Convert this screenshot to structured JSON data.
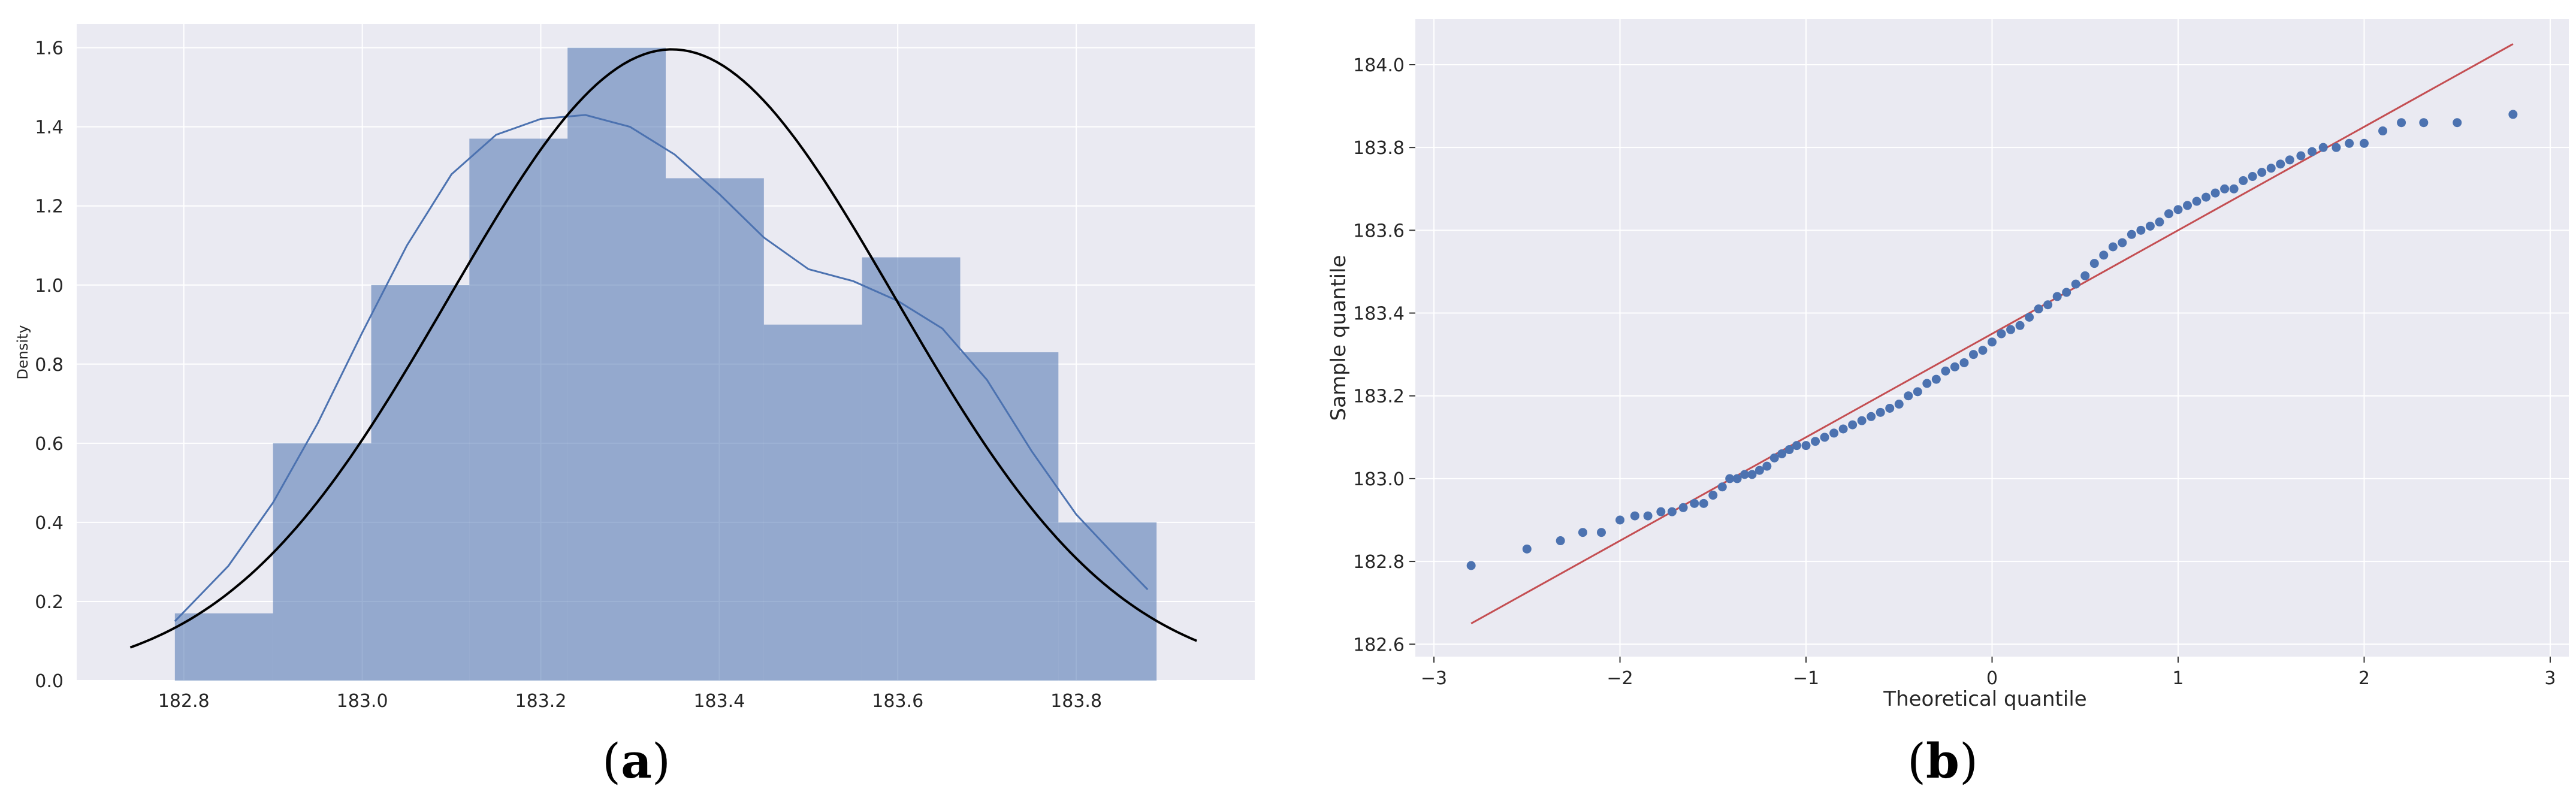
{
  "chart_data": [
    {
      "type": "histogram",
      "panel_label_parts": [
        "(",
        "a",
        ")"
      ],
      "title": "",
      "xlabel": "",
      "ylabel": "Density",
      "xlim": [
        182.68,
        184.0
      ],
      "ylim": [
        0,
        1.66
      ],
      "xticks": [
        "182.8",
        "183.0",
        "183.2",
        "183.4",
        "183.6",
        "183.8"
      ],
      "yticks": [
        "0.0",
        "0.2",
        "0.4",
        "0.6",
        "0.8",
        "1.0",
        "1.2",
        "1.4",
        "1.6"
      ],
      "grid": true,
      "background": "#eaeaf2",
      "bar_color": "#4c72b0",
      "bars": [
        {
          "x0": 182.79,
          "x1": 182.9,
          "density": 0.17
        },
        {
          "x0": 182.9,
          "x1": 183.01,
          "density": 0.6
        },
        {
          "x0": 183.01,
          "x1": 183.12,
          "density": 1.0
        },
        {
          "x0": 183.12,
          "x1": 183.23,
          "density": 1.37
        },
        {
          "x0": 183.23,
          "x1": 183.34,
          "density": 1.6
        },
        {
          "x0": 183.34,
          "x1": 183.45,
          "density": 1.27
        },
        {
          "x0": 183.45,
          "x1": 183.56,
          "density": 0.9
        },
        {
          "x0": 183.56,
          "x1": 183.67,
          "density": 1.07
        },
        {
          "x0": 183.67,
          "x1": 183.78,
          "density": 0.83
        },
        {
          "x0": 183.78,
          "x1": 183.89,
          "density": 0.4
        }
      ],
      "series": [
        {
          "kind": "kde",
          "color": "#4c72b0",
          "points": [
            [
              182.79,
              0.15
            ],
            [
              182.85,
              0.29
            ],
            [
              182.9,
              0.45
            ],
            [
              182.95,
              0.65
            ],
            [
              183.0,
              0.88
            ],
            [
              183.05,
              1.1
            ],
            [
              183.1,
              1.28
            ],
            [
              183.15,
              1.38
            ],
            [
              183.2,
              1.42
            ],
            [
              183.25,
              1.43
            ],
            [
              183.3,
              1.4
            ],
            [
              183.35,
              1.33
            ],
            [
              183.4,
              1.23
            ],
            [
              183.45,
              1.12
            ],
            [
              183.5,
              1.04
            ],
            [
              183.55,
              1.01
            ],
            [
              183.6,
              0.96
            ],
            [
              183.65,
              0.89
            ],
            [
              183.7,
              0.76
            ],
            [
              183.75,
              0.58
            ],
            [
              183.8,
              0.42
            ],
            [
              183.85,
              0.3
            ],
            [
              183.88,
              0.23
            ]
          ]
        },
        {
          "kind": "normal_fit",
          "color": "#000000",
          "mean": 183.347,
          "sd": 0.25,
          "x_range": [
            182.74,
            183.935
          ]
        }
      ]
    },
    {
      "type": "scatter",
      "panel_label_parts": [
        "(",
        "b",
        ")"
      ],
      "title": "",
      "xlabel": "Theoretical quantile",
      "ylabel": "Sample quantile",
      "xlim": [
        -3.1,
        3.1
      ],
      "ylim": [
        182.57,
        184.11
      ],
      "xticks": [
        "−3",
        "−2",
        "−1",
        "0",
        "1",
        "2",
        "3"
      ],
      "yticks": [
        "182.6",
        "182.8",
        "183.0",
        "183.2",
        "183.4",
        "183.6",
        "183.8",
        "184.0"
      ],
      "grid": true,
      "background": "#eaeaf2",
      "point_color": "#4c72b0",
      "line_color": "#c44e52",
      "reference_line": {
        "x": [
          -2.8,
          2.8
        ],
        "y": [
          182.65,
          184.05
        ]
      },
      "points": [
        [
          -2.8,
          182.79
        ],
        [
          -2.5,
          182.83
        ],
        [
          -2.32,
          182.85
        ],
        [
          -2.2,
          182.87
        ],
        [
          -2.1,
          182.87
        ],
        [
          -2.0,
          182.9
        ],
        [
          -1.92,
          182.91
        ],
        [
          -1.85,
          182.91
        ],
        [
          -1.78,
          182.92
        ],
        [
          -1.72,
          182.92
        ],
        [
          -1.66,
          182.93
        ],
        [
          -1.6,
          182.94
        ],
        [
          -1.55,
          182.94
        ],
        [
          -1.5,
          182.96
        ],
        [
          -1.45,
          182.98
        ],
        [
          -1.41,
          183.0
        ],
        [
          -1.37,
          183.0
        ],
        [
          -1.33,
          183.01
        ],
        [
          -1.29,
          183.01
        ],
        [
          -1.25,
          183.02
        ],
        [
          -1.21,
          183.03
        ],
        [
          -1.17,
          183.05
        ],
        [
          -1.13,
          183.06
        ],
        [
          -1.09,
          183.07
        ],
        [
          -1.05,
          183.08
        ],
        [
          -1.0,
          183.08
        ],
        [
          -0.95,
          183.09
        ],
        [
          -0.9,
          183.1
        ],
        [
          -0.85,
          183.11
        ],
        [
          -0.8,
          183.12
        ],
        [
          -0.75,
          183.13
        ],
        [
          -0.7,
          183.14
        ],
        [
          -0.65,
          183.15
        ],
        [
          -0.6,
          183.16
        ],
        [
          -0.55,
          183.17
        ],
        [
          -0.5,
          183.18
        ],
        [
          -0.45,
          183.2
        ],
        [
          -0.4,
          183.21
        ],
        [
          -0.35,
          183.23
        ],
        [
          -0.3,
          183.24
        ],
        [
          -0.25,
          183.26
        ],
        [
          -0.2,
          183.27
        ],
        [
          -0.15,
          183.28
        ],
        [
          -0.1,
          183.3
        ],
        [
          -0.05,
          183.31
        ],
        [
          0.0,
          183.33
        ],
        [
          0.05,
          183.35
        ],
        [
          0.1,
          183.36
        ],
        [
          0.15,
          183.37
        ],
        [
          0.2,
          183.39
        ],
        [
          0.25,
          183.41
        ],
        [
          0.3,
          183.42
        ],
        [
          0.35,
          183.44
        ],
        [
          0.4,
          183.45
        ],
        [
          0.45,
          183.47
        ],
        [
          0.5,
          183.49
        ],
        [
          0.55,
          183.52
        ],
        [
          0.6,
          183.54
        ],
        [
          0.65,
          183.56
        ],
        [
          0.7,
          183.57
        ],
        [
          0.75,
          183.59
        ],
        [
          0.8,
          183.6
        ],
        [
          0.85,
          183.61
        ],
        [
          0.9,
          183.62
        ],
        [
          0.95,
          183.64
        ],
        [
          1.0,
          183.65
        ],
        [
          1.05,
          183.66
        ],
        [
          1.1,
          183.67
        ],
        [
          1.15,
          183.68
        ],
        [
          1.2,
          183.69
        ],
        [
          1.25,
          183.7
        ],
        [
          1.3,
          183.7
        ],
        [
          1.35,
          183.72
        ],
        [
          1.4,
          183.73
        ],
        [
          1.45,
          183.74
        ],
        [
          1.5,
          183.75
        ],
        [
          1.55,
          183.76
        ],
        [
          1.6,
          183.77
        ],
        [
          1.66,
          183.78
        ],
        [
          1.72,
          183.79
        ],
        [
          1.78,
          183.8
        ],
        [
          1.85,
          183.8
        ],
        [
          1.92,
          183.81
        ],
        [
          2.0,
          183.81
        ],
        [
          2.1,
          183.84
        ],
        [
          2.2,
          183.86
        ],
        [
          2.32,
          183.86
        ],
        [
          2.5,
          183.86
        ],
        [
          2.8,
          183.88
        ]
      ]
    }
  ]
}
